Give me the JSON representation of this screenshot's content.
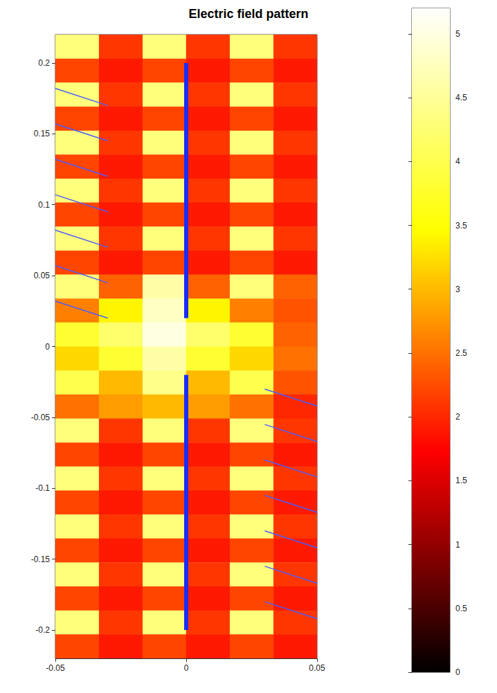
{
  "chart_data": {
    "type": "heatmap",
    "title": "Electric field pattern",
    "xlim": [
      -0.05,
      0.05
    ],
    "xticks": [
      -0.05,
      0,
      0.05
    ],
    "ylim": [
      -0.22,
      0.22
    ],
    "yticks": [
      -0.2,
      -0.15,
      -0.1,
      -0.05,
      0,
      0.05,
      0.1,
      0.15,
      0.2
    ],
    "grid": false,
    "x": [
      -0.0417,
      -0.025,
      -0.0083,
      0.0083,
      0.025,
      0.0417
    ],
    "y": [
      0.2115,
      0.1946,
      0.1777,
      0.1608,
      0.1438,
      0.1269,
      0.11,
      0.0931,
      0.0762,
      0.0592,
      0.0423,
      0.0254,
      0.0085,
      -0.0085,
      -0.0254,
      -0.0423,
      -0.0592,
      -0.0762,
      -0.0931,
      -0.11,
      -0.1269,
      -0.1438,
      -0.1608,
      -0.1777,
      -0.1946,
      -0.2115
    ],
    "cells": [
      [
        4.3,
        2.1,
        4.3,
        2.1,
        4.3,
        2.1
      ],
      [
        2.2,
        1.9,
        2.2,
        1.9,
        2.2,
        1.9
      ],
      [
        4.3,
        2.1,
        4.3,
        2.1,
        4.3,
        2.1
      ],
      [
        2.2,
        1.9,
        2.2,
        1.9,
        2.2,
        1.9
      ],
      [
        4.3,
        2.1,
        4.3,
        2.1,
        4.3,
        2.1
      ],
      [
        2.2,
        1.9,
        2.2,
        1.9,
        2.2,
        1.9
      ],
      [
        4.3,
        2.1,
        4.3,
        2.1,
        4.3,
        2.1
      ],
      [
        2.2,
        1.9,
        2.2,
        1.9,
        2.2,
        1.9
      ],
      [
        4.3,
        2.1,
        4.3,
        2.1,
        4.3,
        2.1
      ],
      [
        2.2,
        1.9,
        2.2,
        1.9,
        2.2,
        1.9
      ],
      [
        4.3,
        2.4,
        4.6,
        2.4,
        4.3,
        2.4
      ],
      [
        2.6,
        3.4,
        4.8,
        3.4,
        2.6,
        2.3
      ],
      [
        3.8,
        4.2,
        5.0,
        4.2,
        3.8,
        2.4
      ],
      [
        3.2,
        3.8,
        4.6,
        3.8,
        3.2,
        2.5
      ],
      [
        4.0,
        3.0,
        4.4,
        3.0,
        4.0,
        2.3
      ],
      [
        2.5,
        2.8,
        3.0,
        2.8,
        2.5,
        2.0
      ],
      [
        4.3,
        2.1,
        4.3,
        2.1,
        4.3,
        2.1
      ],
      [
        2.2,
        1.9,
        2.2,
        1.9,
        2.2,
        1.9
      ],
      [
        4.3,
        2.1,
        4.3,
        2.1,
        4.3,
        2.1
      ],
      [
        2.2,
        1.9,
        2.2,
        1.9,
        2.2,
        1.9
      ],
      [
        4.3,
        2.1,
        4.3,
        2.1,
        4.3,
        2.1
      ],
      [
        2.2,
        1.9,
        2.2,
        1.9,
        2.2,
        1.9
      ],
      [
        4.3,
        2.1,
        4.3,
        2.1,
        4.3,
        2.1
      ],
      [
        2.2,
        1.9,
        2.2,
        1.9,
        2.2,
        1.9
      ],
      [
        4.3,
        2.1,
        4.3,
        2.1,
        4.3,
        2.1
      ],
      [
        2.2,
        1.9,
        2.2,
        1.9,
        2.2,
        1.9
      ]
    ],
    "colorbar": {
      "range": [
        0,
        5.2
      ],
      "ticks": [
        0,
        0.5,
        1,
        1.5,
        2,
        2.5,
        3,
        3.5,
        4,
        4.5,
        5
      ]
    },
    "antenna": {
      "color": "#1a2cff",
      "segments": [
        [
          0,
          0.02,
          0,
          0.2
        ],
        [
          0,
          -0.02,
          0,
          -0.2
        ]
      ]
    },
    "field_vectors": {
      "color": "#4a5cff",
      "segments": [
        [
          -0.05,
          0.032,
          -0.03,
          0.02
        ],
        [
          -0.05,
          0.057,
          -0.03,
          0.045
        ],
        [
          -0.05,
          0.082,
          -0.03,
          0.07
        ],
        [
          -0.05,
          0.107,
          -0.03,
          0.095
        ],
        [
          -0.05,
          0.132,
          -0.03,
          0.12
        ],
        [
          -0.05,
          0.157,
          -0.03,
          0.145
        ],
        [
          -0.05,
          0.182,
          -0.03,
          0.17
        ],
        [
          0.03,
          -0.03,
          0.05,
          -0.042
        ],
        [
          0.03,
          -0.055,
          0.05,
          -0.067
        ],
        [
          0.03,
          -0.08,
          0.05,
          -0.092
        ],
        [
          0.03,
          -0.105,
          0.05,
          -0.117
        ],
        [
          0.03,
          -0.13,
          0.05,
          -0.142
        ],
        [
          0.03,
          -0.155,
          0.05,
          -0.167
        ],
        [
          0.03,
          -0.18,
          0.05,
          -0.192
        ]
      ]
    }
  }
}
